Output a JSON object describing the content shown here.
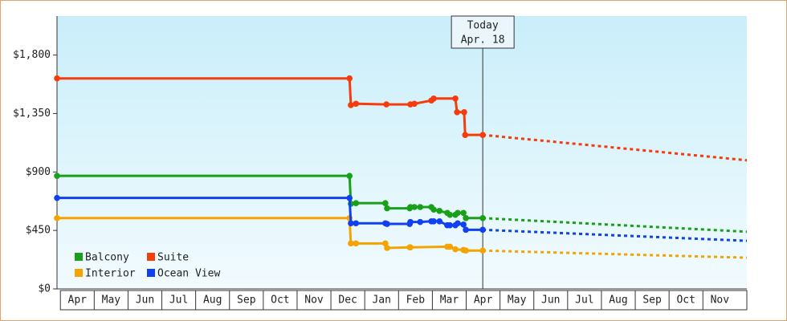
{
  "chart_data": {
    "type": "line",
    "categories": [
      "Apr",
      "May",
      "Jun",
      "Jul",
      "Aug",
      "Sep",
      "Oct",
      "Nov",
      "Dec",
      "Jan",
      "Feb",
      "Mar",
      "Apr",
      "May",
      "Jun",
      "Jul",
      "Aug",
      "Sep",
      "Oct",
      "Nov"
    ],
    "xlim": [
      -0.1,
      20.3
    ],
    "ylim": [
      0,
      2100
    ],
    "yticks": [
      {
        "value": 0,
        "label": "$0"
      },
      {
        "value": 450,
        "label": "$450"
      },
      {
        "value": 900,
        "label": "$900"
      },
      {
        "value": 1350,
        "label": "$1,350"
      },
      {
        "value": 1800,
        "label": "$1,800"
      }
    ],
    "today": {
      "x": 12.49,
      "label": [
        "Today",
        "Apr. 18"
      ]
    },
    "series": [
      {
        "name": "Balcony",
        "color": "#18a018",
        "x": [
          -0.1,
          8.55,
          8.59,
          8.74,
          9.61,
          9.66,
          10.33,
          10.35,
          10.47,
          10.64,
          10.97,
          11.04,
          11.21,
          11.44,
          11.52,
          11.68,
          11.75,
          11.92,
          11.99,
          12.49
        ],
        "values": [
          870,
          870,
          655,
          660,
          660,
          620,
          620,
          630,
          630,
          630,
          630,
          610,
          600,
          585,
          570,
          570,
          585,
          585,
          545,
          545
        ],
        "projection": {
          "x": [
            12.49,
            20.3
          ],
          "values": [
            545,
            440
          ]
        }
      },
      {
        "name": "Suite",
        "color": "#f53c0a",
        "x": [
          -0.1,
          8.55,
          8.59,
          8.74,
          9.64,
          10.35,
          10.47,
          10.97,
          11.04,
          11.68,
          11.73,
          11.94,
          11.97,
          12.49
        ],
        "values": [
          1620,
          1620,
          1415,
          1425,
          1420,
          1420,
          1425,
          1450,
          1465,
          1465,
          1360,
          1360,
          1185,
          1185
        ],
        "projection": {
          "x": [
            12.49,
            20.3
          ],
          "values": [
            1185,
            990
          ]
        }
      },
      {
        "name": "Interior",
        "color": "#f5a300",
        "x": [
          -0.1,
          8.55,
          8.59,
          8.74,
          9.61,
          9.66,
          10.33,
          10.35,
          11.44,
          11.52,
          11.68,
          11.92,
          11.99,
          12.49
        ],
        "values": [
          545,
          545,
          350,
          350,
          350,
          315,
          320,
          320,
          325,
          325,
          305,
          300,
          295,
          295
        ],
        "projection": {
          "x": [
            12.49,
            20.3
          ],
          "values": [
            295,
            240
          ]
        }
      },
      {
        "name": "Ocean View",
        "color": "#1040f0",
        "x": [
          -0.1,
          8.55,
          8.59,
          8.74,
          9.61,
          9.66,
          10.33,
          10.35,
          10.64,
          10.97,
          11.04,
          11.21,
          11.44,
          11.52,
          11.68,
          11.75,
          11.92,
          11.99,
          12.49
        ],
        "values": [
          700,
          700,
          505,
          505,
          505,
          500,
          500,
          515,
          515,
          520,
          520,
          520,
          490,
          490,
          490,
          505,
          495,
          455,
          455
        ],
        "projection": {
          "x": [
            12.49,
            20.3
          ],
          "values": [
            455,
            370
          ]
        }
      }
    ]
  }
}
